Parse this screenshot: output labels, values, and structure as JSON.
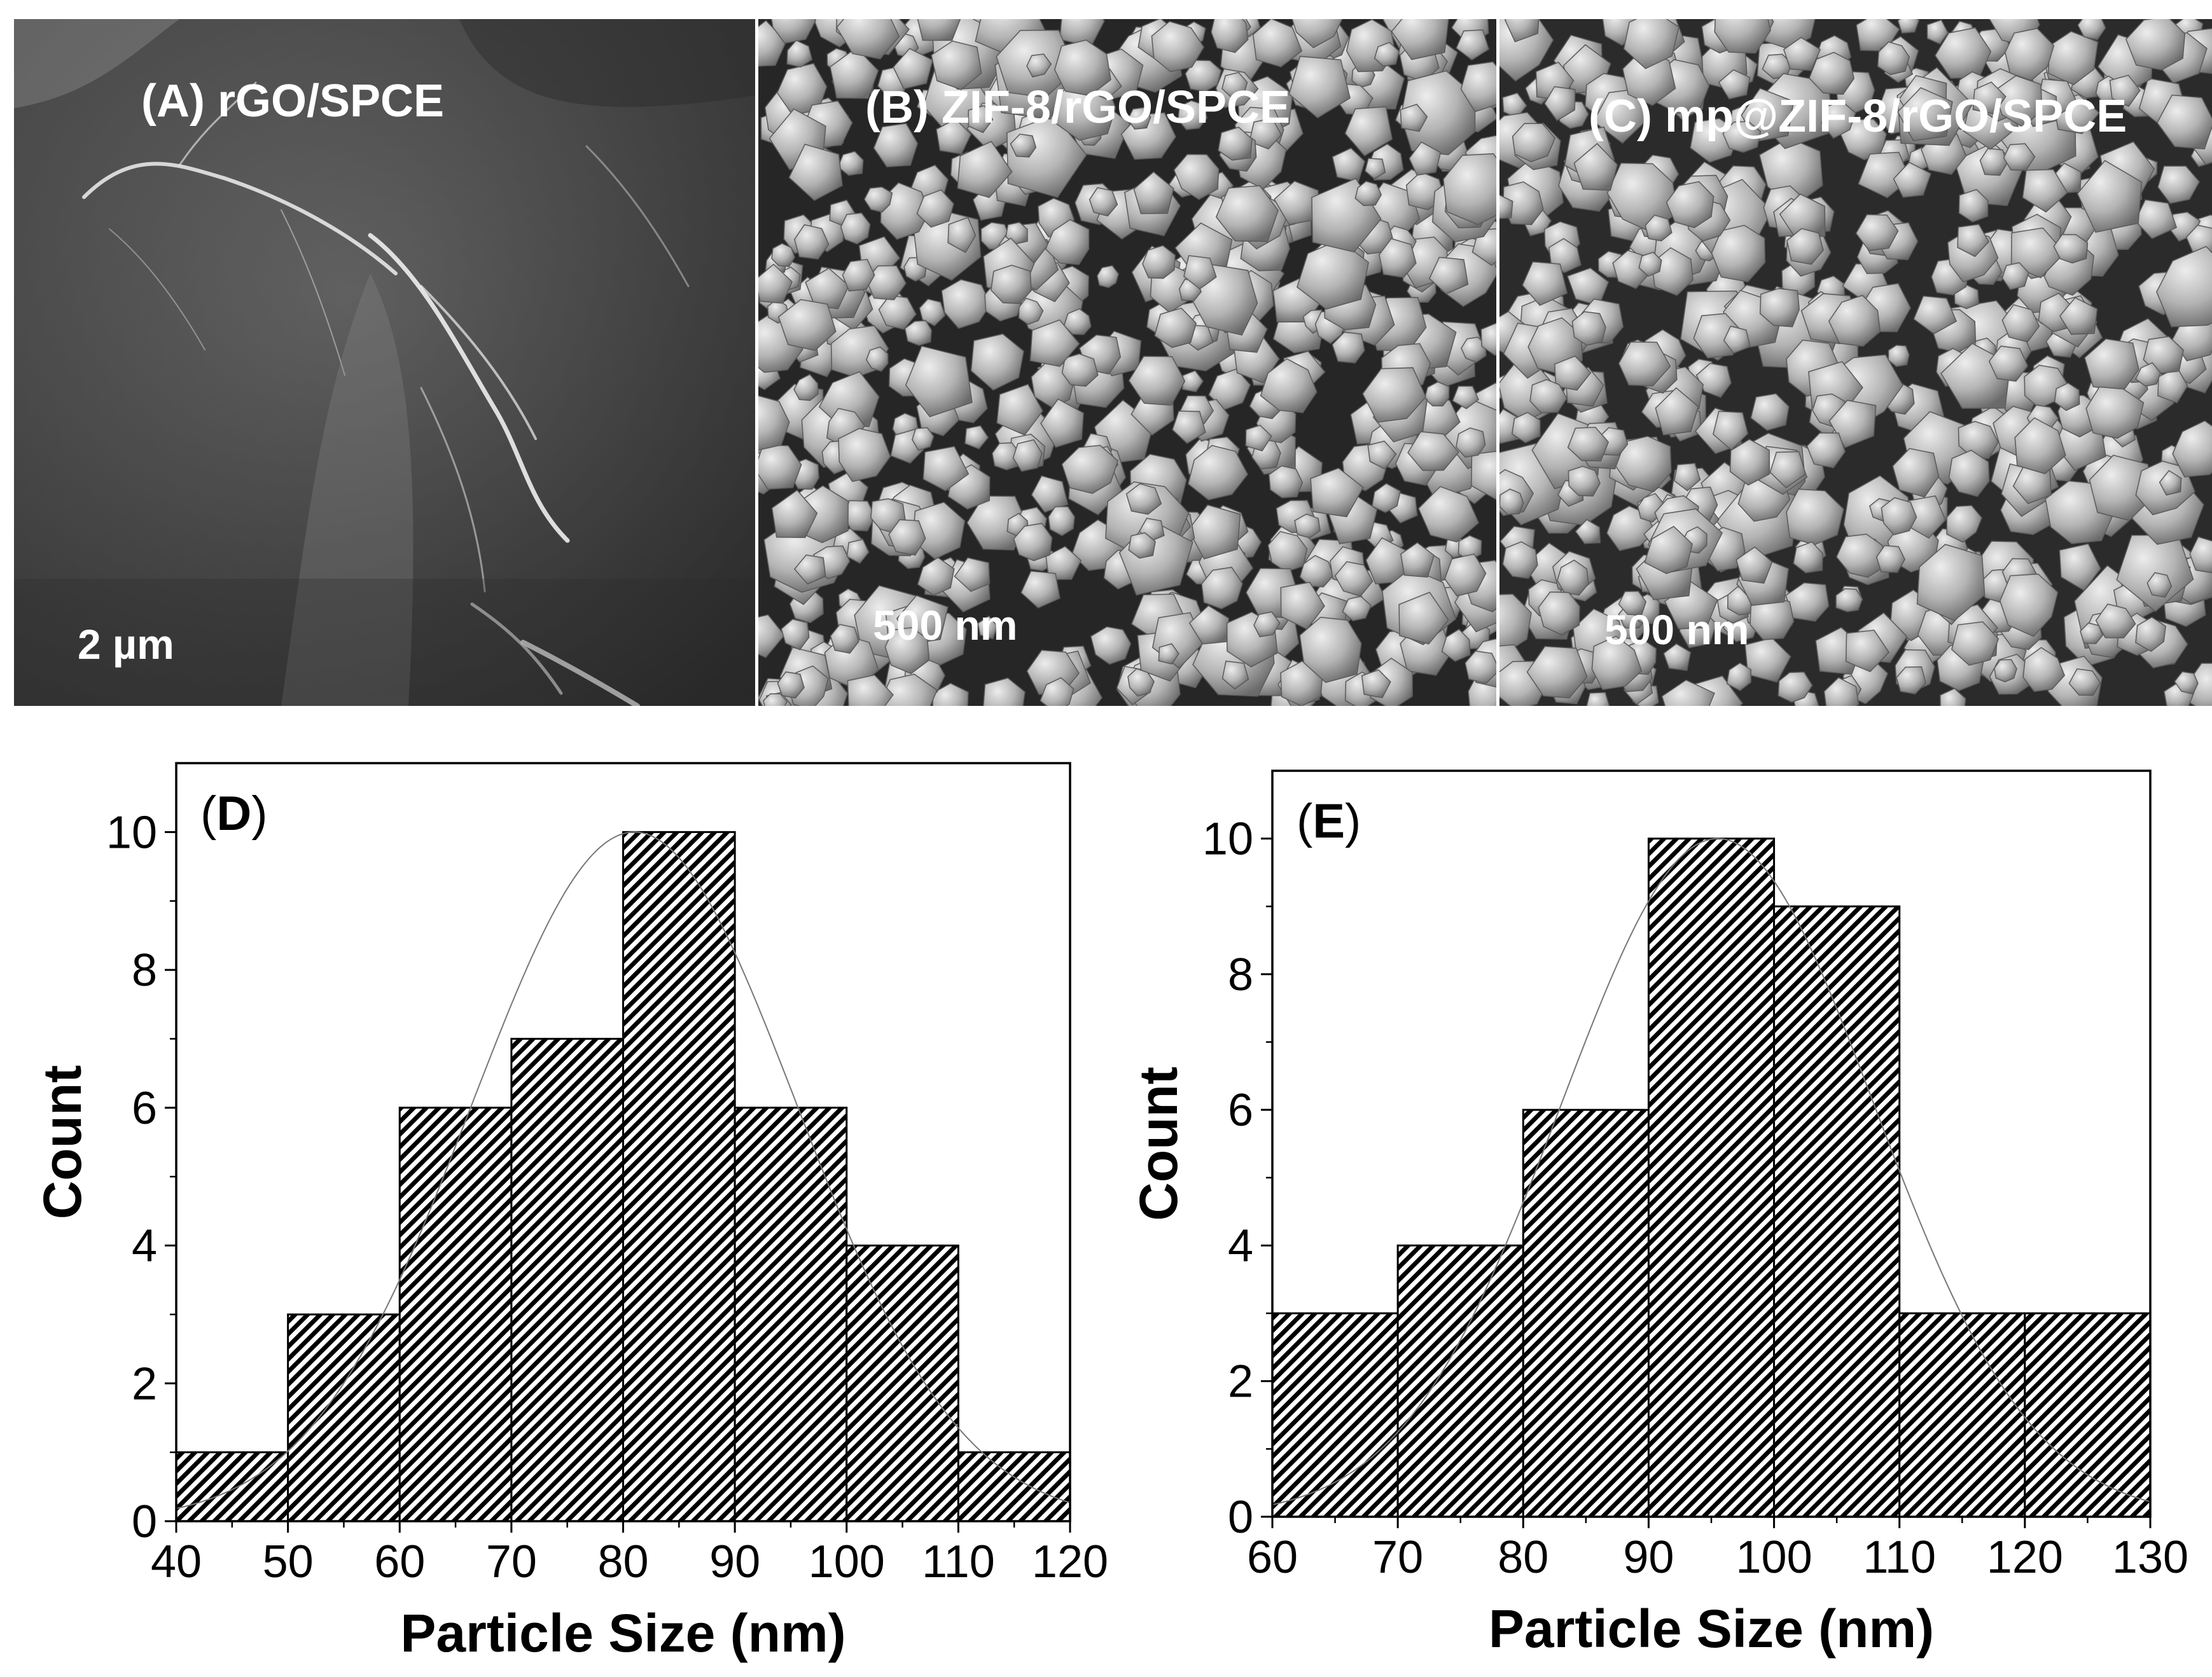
{
  "panels": {
    "a": {
      "label": "(A) rGO/SPCE",
      "scale": "2 µm"
    },
    "b": {
      "label": "(B) ZIF-8/rGO/SPCE",
      "scale": "500 nm"
    },
    "c": {
      "label": "(C) mp@ZIF-8/rGO/SPCE",
      "scale": "500 nm"
    }
  },
  "chart_data": [
    {
      "type": "bar",
      "panel_label": "(D)",
      "title": "",
      "xlabel": "Particle Size (nm)",
      "ylabel": "Count",
      "bin_edges": [
        40,
        50,
        60,
        70,
        80,
        90,
        100,
        110,
        120
      ],
      "values": [
        1,
        3,
        6,
        7,
        10,
        6,
        4,
        1
      ],
      "xlim": [
        40,
        120
      ],
      "ylim": [
        0,
        11
      ],
      "xticks": [
        40,
        50,
        60,
        70,
        80,
        90,
        100,
        110,
        120
      ],
      "yticks": [
        0,
        2,
        4,
        6,
        8,
        10
      ],
      "fit": {
        "type": "gaussian",
        "mean": 81,
        "sigma": 14.5,
        "peak": 10
      },
      "pattern": "diagonal-hatch",
      "grid": false
    },
    {
      "type": "bar",
      "panel_label": "(E)",
      "title": "",
      "xlabel": "Particle Size (nm)",
      "ylabel": "Count",
      "bin_edges": [
        60,
        70,
        80,
        90,
        100,
        110,
        120,
        130
      ],
      "values": [
        3,
        4,
        6,
        10,
        9,
        3,
        3
      ],
      "xlim": [
        60,
        130
      ],
      "ylim": [
        0,
        11
      ],
      "xticks": [
        60,
        70,
        80,
        90,
        100,
        110,
        120,
        130
      ],
      "yticks": [
        0,
        2,
        4,
        6,
        8,
        10
      ],
      "fit": {
        "type": "gaussian",
        "mean": 95.5,
        "sigma": 12.5,
        "peak": 10
      },
      "pattern": "diagonal-hatch",
      "grid": false
    }
  ]
}
